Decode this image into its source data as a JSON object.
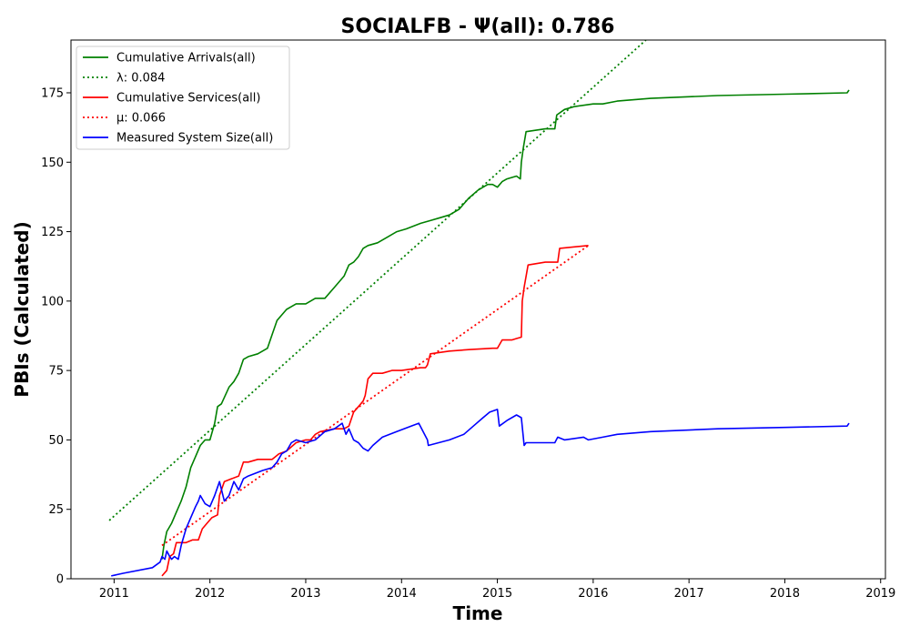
{
  "chart_data": {
    "type": "line",
    "title": "SOCIALFB -  Ψ(all): 0.786",
    "xlabel": "Time",
    "ylabel": "PBIs (Calculated)",
    "xlim": [
      2010.55,
      2019.05
    ],
    "ylim": [
      0,
      194
    ],
    "x_ticks": [
      2011,
      2012,
      2013,
      2014,
      2015,
      2016,
      2017,
      2018,
      2019
    ],
    "x_tick_labels": [
      "2011",
      "2012",
      "2013",
      "2014",
      "2015",
      "2016",
      "2017",
      "2018",
      "2019"
    ],
    "y_ticks": [
      0,
      25,
      50,
      75,
      100,
      125,
      150,
      175
    ],
    "y_tick_labels": [
      "0",
      "25",
      "50",
      "75",
      "100",
      "125",
      "150",
      "175"
    ],
    "grid": false,
    "legend_placement": "upper-left",
    "series": [
      {
        "name": "Cumulative Arrivals(all)",
        "color": "#008000",
        "dash": "solid",
        "x": [
          2011.5,
          2011.52,
          2011.55,
          2011.6,
          2011.65,
          2011.7,
          2011.75,
          2011.8,
          2011.85,
          2011.9,
          2011.95,
          2012.0,
          2012.05,
          2012.08,
          2012.12,
          2012.2,
          2012.25,
          2012.3,
          2012.35,
          2012.4,
          2012.5,
          2012.6,
          2012.65,
          2012.7,
          2012.75,
          2012.8,
          2012.85,
          2012.9,
          2013.0,
          2013.1,
          2013.2,
          2013.3,
          2013.4,
          2013.45,
          2013.5,
          2013.55,
          2013.6,
          2013.65,
          2013.75,
          2013.85,
          2013.95,
          2014.05,
          2014.2,
          2014.3,
          2014.4,
          2014.5,
          2014.6,
          2014.7,
          2014.8,
          2014.9,
          2014.95,
          2015.0,
          2015.05,
          2015.1,
          2015.2,
          2015.24,
          2015.25,
          2015.27,
          2015.3,
          2015.5,
          2015.6,
          2015.62,
          2015.7,
          2015.8,
          2016.0,
          2016.1,
          2016.25,
          2016.6,
          2017.3,
          2018.0,
          2018.65,
          2018.67
        ],
        "y": [
          7,
          12,
          17,
          20,
          24,
          28,
          33,
          40,
          44,
          48,
          50,
          50,
          56,
          62,
          63,
          69,
          71,
          74,
          79,
          80,
          81,
          83,
          88,
          93,
          95,
          97,
          98,
          99,
          99,
          101,
          101,
          105,
          109,
          113,
          114,
          116,
          119,
          120,
          121,
          123,
          125,
          126,
          128,
          129,
          130,
          131,
          133,
          137,
          140,
          142,
          142,
          141,
          143,
          144,
          145,
          144,
          150,
          155,
          161,
          162,
          162,
          167,
          169,
          170,
          171,
          171,
          172,
          173,
          174,
          174.5,
          175,
          176
        ]
      },
      {
        "name": "λ: 0.084",
        "color": "#008000",
        "dash": "dotted",
        "x": [
          2010.95,
          2016.55
        ],
        "y": [
          21,
          194
        ]
      },
      {
        "name": "Cumulative Services(all)",
        "color": "#ff0000",
        "dash": "solid",
        "x": [
          2011.5,
          2011.55,
          2011.58,
          2011.62,
          2011.65,
          2011.75,
          2011.82,
          2011.88,
          2011.92,
          2011.97,
          2012.02,
          2012.08,
          2012.1,
          2012.15,
          2012.3,
          2012.32,
          2012.35,
          2012.4,
          2012.5,
          2012.65,
          2012.72,
          2012.8,
          2012.9,
          2013.0,
          2013.05,
          2013.1,
          2013.15,
          2013.3,
          2013.4,
          2013.45,
          2013.5,
          2013.55,
          2013.6,
          2013.62,
          2013.65,
          2013.7,
          2013.8,
          2013.9,
          2014.0,
          2014.2,
          2014.25,
          2014.27,
          2014.3,
          2014.5,
          2014.7,
          2014.95,
          2015.0,
          2015.05,
          2015.15,
          2015.2,
          2015.25,
          2015.26,
          2015.28,
          2015.32,
          2015.5,
          2015.63,
          2015.65,
          2015.95
        ],
        "y": [
          1,
          3,
          8,
          9,
          13,
          13,
          14,
          14,
          18,
          20,
          22,
          23,
          30,
          35,
          37,
          39,
          42,
          42,
          43,
          43,
          45,
          46,
          49,
          50,
          50,
          52,
          53,
          54,
          54,
          55,
          60,
          62,
          64,
          66,
          72,
          74,
          74,
          75,
          75,
          76,
          76,
          77,
          81,
          82,
          82.5,
          83,
          83,
          86,
          86,
          86.5,
          87,
          100,
          105,
          113,
          114,
          114,
          119,
          120
        ]
      },
      {
        "name": "μ: 0.066",
        "color": "#ff0000",
        "dash": "dotted",
        "x": [
          2011.5,
          2015.95
        ],
        "y": [
          12,
          120
        ]
      },
      {
        "name": "Measured System Size(all)",
        "color": "#0000ff",
        "dash": "solid",
        "x": [
          2010.97,
          2011.1,
          2011.4,
          2011.48,
          2011.5,
          2011.53,
          2011.55,
          2011.58,
          2011.6,
          2011.63,
          2011.67,
          2011.7,
          2011.75,
          2011.8,
          2011.85,
          2011.88,
          2011.9,
          2011.95,
          2012.0,
          2012.05,
          2012.08,
          2012.1,
          2012.15,
          2012.2,
          2012.25,
          2012.3,
          2012.35,
          2012.4,
          2012.55,
          2012.65,
          2012.7,
          2012.75,
          2012.8,
          2012.85,
          2012.9,
          2013.0,
          2013.1,
          2013.2,
          2013.3,
          2013.38,
          2013.42,
          2013.45,
          2013.5,
          2013.55,
          2013.6,
          2013.65,
          2013.7,
          2013.8,
          2013.95,
          2014.1,
          2014.18,
          2014.27,
          2014.28,
          2014.5,
          2014.65,
          2014.75,
          2014.85,
          2014.92,
          2015.0,
          2015.02,
          2015.1,
          2015.2,
          2015.25,
          2015.28,
          2015.3,
          2015.6,
          2015.63,
          2015.7,
          2015.9,
          2015.95,
          2016.1,
          2016.25,
          2016.6,
          2017.3,
          2018.0,
          2018.65,
          2018.67
        ],
        "y": [
          1,
          2,
          4,
          6,
          8,
          7,
          10,
          8,
          7,
          8,
          7,
          12,
          18,
          22,
          26,
          28,
          30,
          27,
          26,
          30,
          33,
          35,
          28,
          30,
          35,
          32,
          36,
          37,
          39,
          40,
          42,
          45,
          46,
          49,
          50,
          49,
          50,
          53,
          54,
          56,
          52,
          54,
          50,
          49,
          47,
          46,
          48,
          51,
          53,
          55,
          56,
          50,
          48,
          50,
          52,
          55,
          58,
          60,
          61,
          55,
          57,
          59,
          58,
          48,
          49,
          49,
          51,
          50,
          51,
          50,
          51,
          52,
          53,
          54,
          54.5,
          55,
          56
        ]
      }
    ]
  }
}
